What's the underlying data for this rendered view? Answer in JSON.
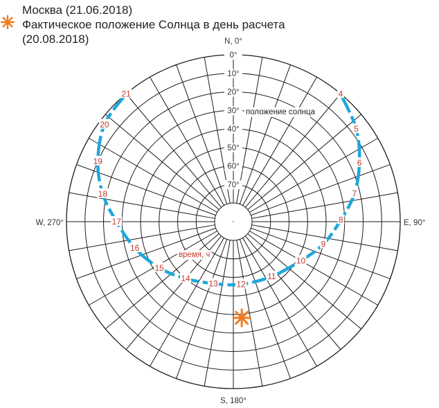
{
  "header": {
    "title": "Москва (21.06.2018)",
    "legend_line1": "Фактическое положение Солнца в день расчета",
    "legend_line2": "(20.08.2018)"
  },
  "compass": {
    "north": "N, 0°",
    "east": "E, 90°",
    "south": "S, 180°",
    "west": "W, 270°"
  },
  "altitude_labels": [
    "0°",
    "10°",
    "20°",
    "30°",
    "40°",
    "50°",
    "60°",
    "70°"
  ],
  "annotations": {
    "sun_path": "положение солнца",
    "time": "время, ч"
  },
  "sun_path": {
    "date": "21.06.2018",
    "points": [
      {
        "hour": "4",
        "azimuth": 40,
        "altitude": 0
      },
      {
        "hour": "5",
        "azimuth": 53,
        "altitude": 7
      },
      {
        "hour": "6",
        "azimuth": 65,
        "altitude": 15
      },
      {
        "hour": "7",
        "azimuth": 77,
        "altitude": 23
      },
      {
        "hour": "8",
        "azimuth": 89,
        "altitude": 32
      },
      {
        "hour": "9",
        "azimuth": 104,
        "altitude": 40
      },
      {
        "hour": "10",
        "azimuth": 120,
        "altitude": 48
      },
      {
        "hour": "11",
        "azimuth": 145,
        "altitude": 54
      },
      {
        "hour": "12",
        "azimuth": 173,
        "altitude": 56
      },
      {
        "hour": "13",
        "azimuth": 198,
        "altitude": 55
      },
      {
        "hour": "14",
        "azimuth": 220,
        "altitude": 50
      },
      {
        "hour": "15",
        "azimuth": 238,
        "altitude": 43
      },
      {
        "hour": "16",
        "azimuth": 255,
        "altitude": 35
      },
      {
        "hour": "17",
        "azimuth": 270,
        "altitude": 27
      },
      {
        "hour": "18",
        "azimuth": 282,
        "altitude": 18
      },
      {
        "hour": "19",
        "azimuth": 294,
        "altitude": 10
      },
      {
        "hour": "20",
        "azimuth": 307,
        "altitude": 3
      },
      {
        "hour": "21",
        "azimuth": 320,
        "altitude": 0
      }
    ]
  },
  "actual_sun": {
    "date": "20.08.2018",
    "azimuth": 175,
    "altitude": 38
  },
  "colors": {
    "sun_path": "#1ea7dc",
    "hour_labels": "#c0392b",
    "sun_marker": "#f07b1e",
    "grid": "#1a1a1a"
  },
  "icons": {
    "legend": "sun-icon",
    "marker": "sun-icon"
  }
}
